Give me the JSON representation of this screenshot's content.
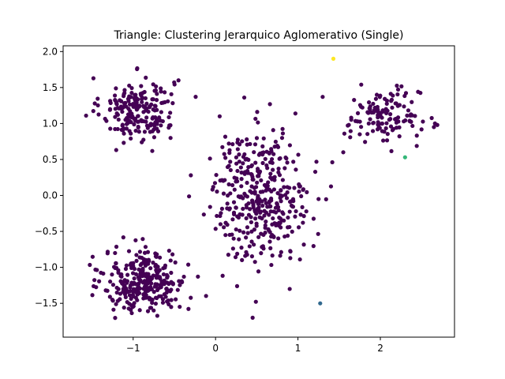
{
  "chart_data": {
    "type": "scatter",
    "title": "Triangle: Clustering Jerarquico Aglomerativo (Single)",
    "xlabel": "",
    "ylabel": "",
    "xlim": [
      -1.85,
      2.9
    ],
    "ylim": [
      -1.97,
      2.08
    ],
    "xticks": [
      -1,
      0,
      1,
      2
    ],
    "xtick_labels": [
      "−1",
      "0",
      "1",
      "2"
    ],
    "yticks": [
      -1.5,
      -1.0,
      -0.5,
      0.0,
      0.5,
      1.0,
      1.5,
      2.0
    ],
    "ytick_labels": [
      "−1.5",
      "−1.0",
      "−0.5",
      "0.0",
      "0.5",
      "1.0",
      "1.5",
      "2.0"
    ],
    "grid": false,
    "legend": "none",
    "colors": {
      "cluster_0": "#440154",
      "cluster_1": "#31688e",
      "cluster_2": "#35b779",
      "cluster_3": "#fde725"
    },
    "clusters": [
      {
        "cluster": 0,
        "color": "#440154",
        "blobs": [
          {
            "center": [
              -0.95,
              1.2
            ],
            "spread": [
              0.22,
              0.22
            ],
            "count": 210
          },
          {
            "center": [
              -0.85,
              -1.2
            ],
            "spread": [
              0.25,
              0.22
            ],
            "count": 300
          },
          {
            "center": [
              0.55,
              0.0
            ],
            "spread": [
              0.3,
              0.45
            ],
            "count": 380
          },
          {
            "center": [
              2.05,
              1.1
            ],
            "spread": [
              0.22,
              0.18
            ],
            "count": 130
          }
        ],
        "points": [
          [
            1.3,
            1.37
          ],
          [
            1.75,
            0.85
          ],
          [
            0.9,
            -1.3
          ],
          [
            0.45,
            -1.7
          ],
          [
            0.05,
            1.1
          ],
          [
            1.55,
            0.6
          ],
          [
            -0.3,
            0.28
          ],
          [
            1.25,
            -0.05
          ],
          [
            2.65,
            0.95
          ],
          [
            -0.45,
            1.6
          ]
        ]
      },
      {
        "cluster": 1,
        "color": "#31688e",
        "points": [
          [
            1.27,
            -1.5
          ]
        ]
      },
      {
        "cluster": 2,
        "color": "#35b779",
        "points": [
          [
            2.3,
            0.53
          ]
        ]
      },
      {
        "cluster": 3,
        "color": "#fde725",
        "points": [
          [
            1.43,
            1.9
          ]
        ]
      }
    ]
  }
}
